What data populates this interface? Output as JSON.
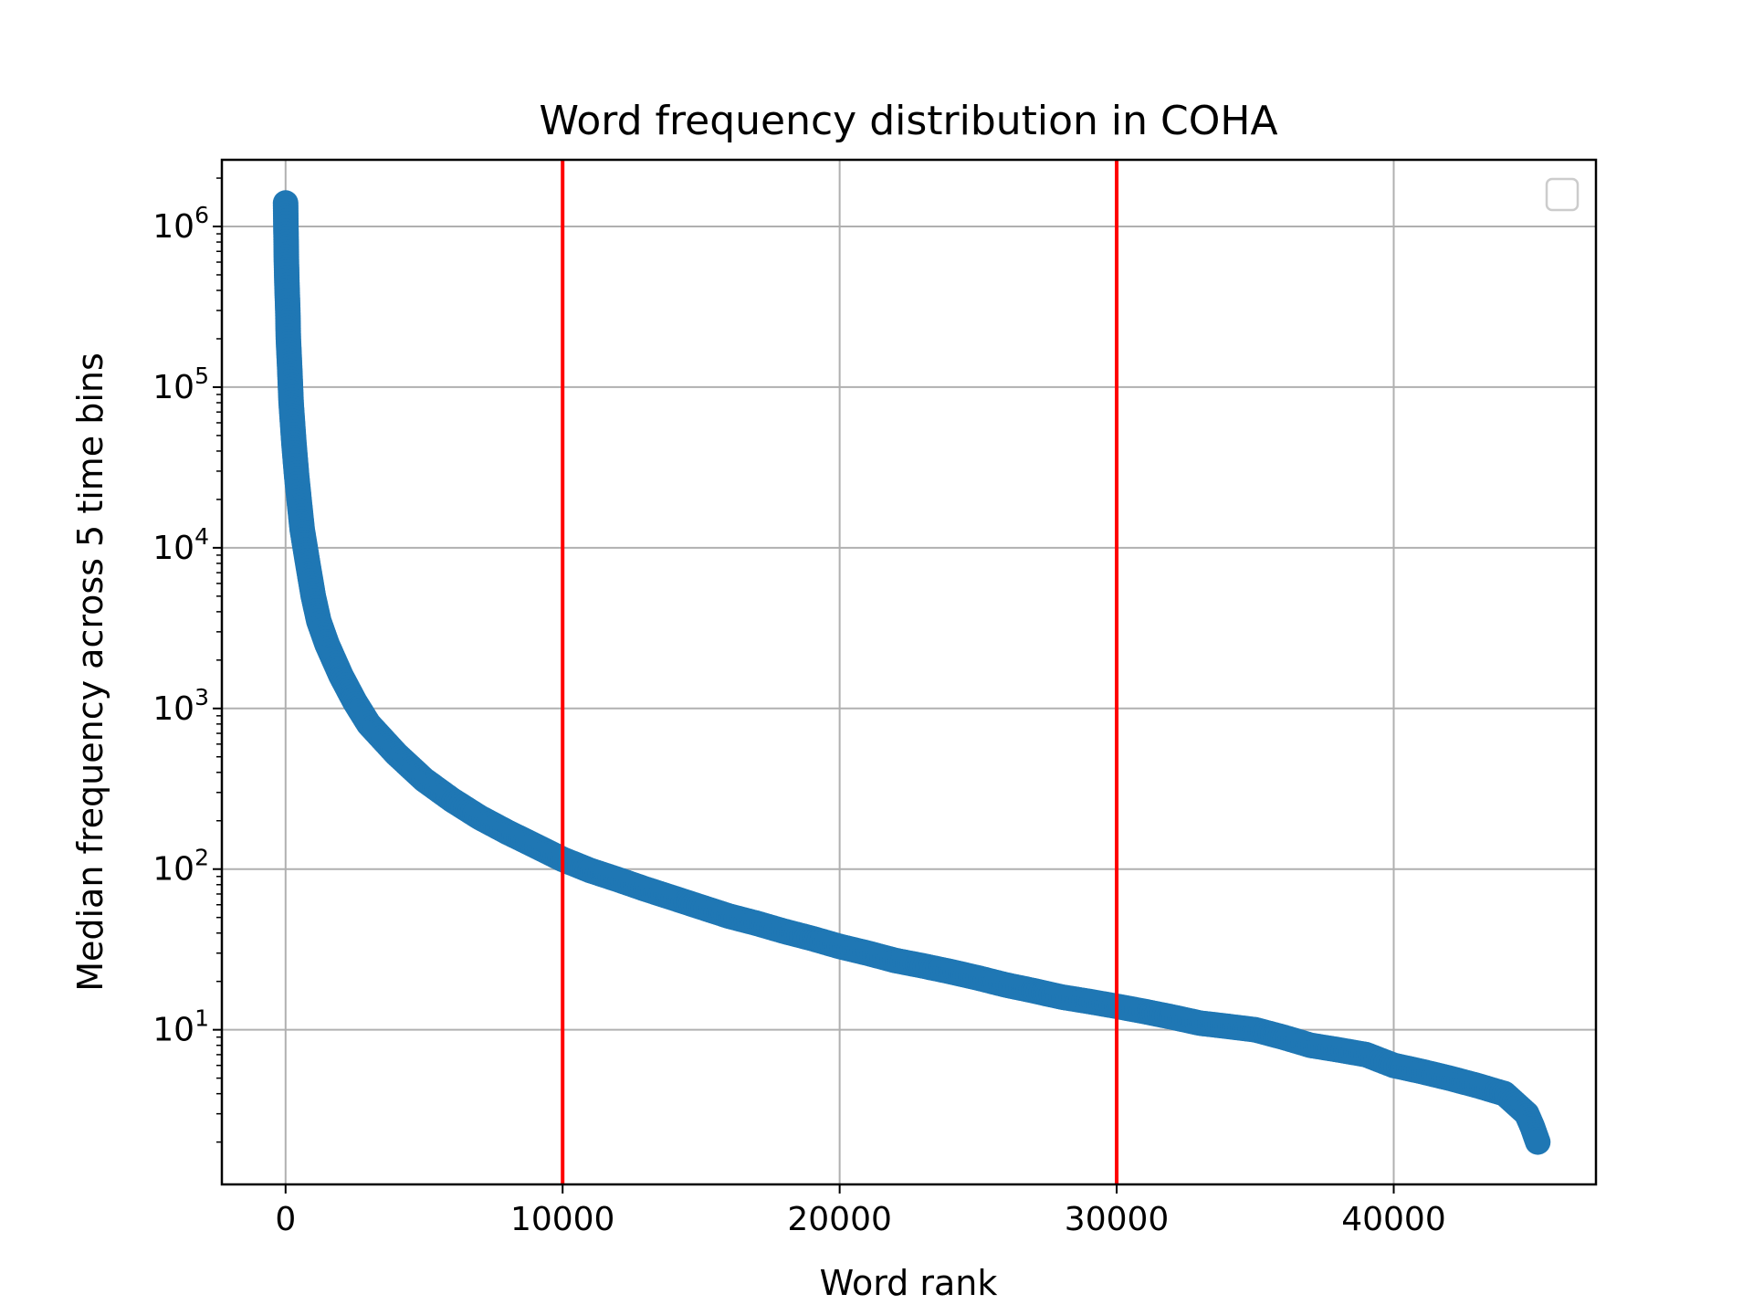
{
  "chart_data": {
    "type": "scatter",
    "title": "Word frequency distribution in COHA",
    "xlabel": "Word rank",
    "ylabel": "Median frequency across 5 time bins",
    "x_scale": "linear",
    "y_scale": "log",
    "xlim": [
      -2300,
      47300
    ],
    "ylim": [
      1.09,
      2600000
    ],
    "x_ticks": [
      0,
      10000,
      20000,
      30000,
      40000
    ],
    "x_tick_labels": [
      "0",
      "10000",
      "20000",
      "30000",
      "40000"
    ],
    "y_ticks": [
      10,
      100,
      1000,
      10000,
      100000,
      1000000
    ],
    "y_tick_labels": [
      {
        "base": "10",
        "exp": "1"
      },
      {
        "base": "10",
        "exp": "2"
      },
      {
        "base": "10",
        "exp": "3"
      },
      {
        "base": "10",
        "exp": "4"
      },
      {
        "base": "10",
        "exp": "5"
      },
      {
        "base": "10",
        "exp": "6"
      }
    ],
    "grid": true,
    "legend": {
      "placement": "upper-right",
      "entries": []
    },
    "vlines": [
      {
        "x": 10000,
        "color": "#ff0000"
      },
      {
        "x": 30000,
        "color": "#ff0000"
      }
    ],
    "point_color": "#1f77b4",
    "series": [
      {
        "x": [
          0,
          20,
          30,
          50,
          80,
          100,
          150,
          200,
          300,
          400,
          500,
          600,
          800,
          1000,
          1200,
          1500,
          2000,
          2500,
          3000,
          4000,
          5000,
          6000,
          7000,
          8000,
          9000,
          10000,
          11000,
          12000,
          13000,
          14000,
          15000,
          16000,
          17000,
          18000,
          19000,
          20000,
          21000,
          22000,
          23000,
          24000,
          25000,
          26000,
          27000,
          28000,
          29000,
          30000,
          31000,
          32000,
          33000,
          34000,
          35000,
          36000,
          37000,
          38000,
          39000,
          40000,
          41000,
          42000,
          43000,
          44000,
          44800,
          45000,
          45200
        ],
        "y": [
          1400000,
          800000,
          600000,
          430000,
          300000,
          200000,
          130000,
          80000,
          45000,
          28000,
          19000,
          13000,
          8000,
          5000,
          3500,
          2500,
          1600,
          1100,
          800,
          520,
          360,
          270,
          210,
          170,
          140,
          115,
          98,
          86,
          75,
          66,
          58,
          51,
          46,
          41,
          37,
          33,
          30,
          27,
          25,
          23,
          21,
          19,
          17.5,
          16,
          15,
          14,
          13,
          12,
          11,
          10.5,
          10,
          9,
          8,
          7.5,
          7,
          6,
          5.5,
          5,
          4.5,
          4,
          3,
          2.5,
          2
        ]
      }
    ]
  }
}
